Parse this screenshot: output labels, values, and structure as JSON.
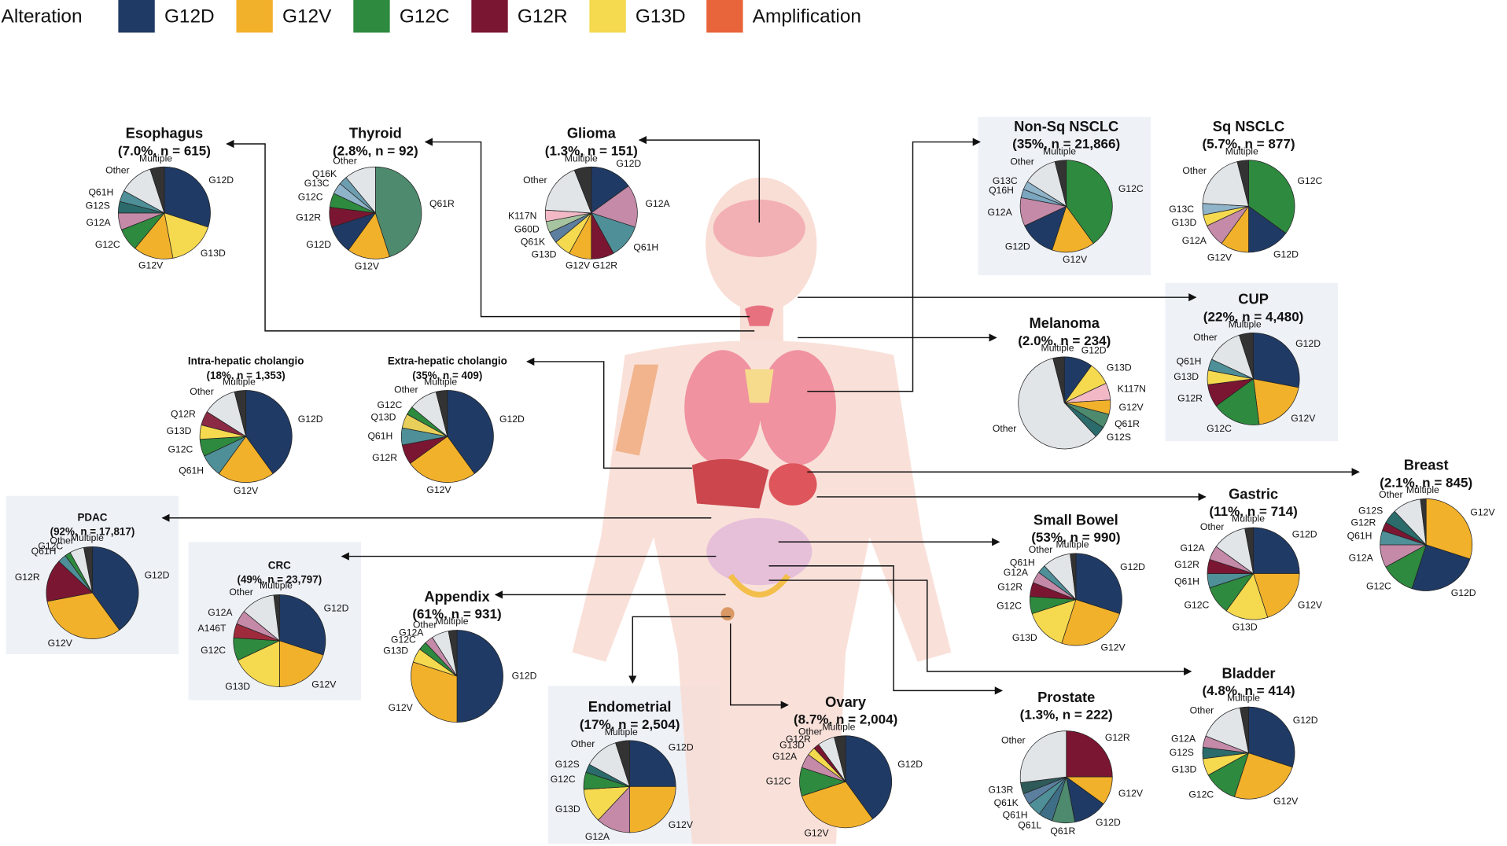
{
  "legend": {
    "title": "Alteration",
    "items": [
      "G12D",
      "G12V",
      "G12C",
      "G12R",
      "G13D",
      "Amplification"
    ]
  },
  "colors": {
    "G12D": "#1f3a64",
    "G12V": "#f2b12b",
    "G12C": "#2e8a3e",
    "G12R": "#7b1632",
    "G13D": "#f5d94f",
    "Amplification": "#e8643a",
    "Q61H": "#4e8f98",
    "G12A": "#c48aa8",
    "G12S": "#2b6b6b",
    "Other": "#e1e5e8",
    "Multiple": "#333333",
    "Q61R": "#4d8a6e",
    "Q61K": "#5c7fa0",
    "Q61L": "#3f6f86",
    "G13C": "#8fb3c9",
    "Q16K": "#6d9eb0",
    "Q16H": "#7aa6bf",
    "G60D": "#a7c4a0",
    "K117N": "#f2b8c6",
    "Q12R": "#8b2a44",
    "Q13D": "#e8cf5a",
    "A146T": "#9e2a3c",
    "G13R": "#2f5a5a"
  },
  "chart_data": [
    {
      "type": "pie",
      "title": "Esophagus",
      "subtitle": "(7.0%, n = 615)",
      "categories": [
        "G12D",
        "G13D",
        "G12V",
        "G12C",
        "G12A",
        "G12S",
        "Q61H",
        "Other",
        "Multiple"
      ],
      "values": [
        30,
        17,
        14,
        8,
        6,
        4,
        4,
        12,
        5
      ]
    },
    {
      "type": "pie",
      "title": "Thyroid",
      "subtitle": "(2.8%, n = 92)",
      "categories": [
        "Q61R",
        "G12V",
        "G12D",
        "G12R",
        "G12C",
        "G13C",
        "Q16K",
        "Other"
      ],
      "values": [
        45,
        15,
        10,
        7,
        5,
        4,
        3,
        11
      ]
    },
    {
      "type": "pie",
      "title": "Glioma",
      "subtitle": "(1.3%, n = 151)",
      "categories": [
        "G12D",
        "G12A",
        "Q61H",
        "G12R",
        "G12V",
        "G13D",
        "Q61K",
        "G60D",
        "K117N",
        "Other",
        "Multiple"
      ],
      "values": [
        15,
        15,
        12,
        8,
        8,
        6,
        4,
        4,
        4,
        18,
        6
      ]
    },
    {
      "type": "pie",
      "title": "Non-Sq NSCLC",
      "subtitle": "(35%, n = 21,866)",
      "categories": [
        "G12C",
        "G12V",
        "G12D",
        "G12A",
        "Q16H",
        "G13C",
        "Other",
        "Multiple"
      ],
      "values": [
        40,
        15,
        13,
        10,
        3,
        3,
        12,
        4
      ]
    },
    {
      "type": "pie",
      "title": "Sq NSCLC",
      "subtitle": "(5.7%, n = 877)",
      "categories": [
        "G12C",
        "G12D",
        "G12V",
        "G12A",
        "G13D",
        "G13C",
        "Other",
        "Multiple"
      ],
      "values": [
        35,
        15,
        10,
        8,
        4,
        4,
        20,
        4
      ]
    },
    {
      "type": "pie",
      "title": "CUP",
      "subtitle": "(22%, n = 4,480)",
      "categories": [
        "G12D",
        "G12V",
        "G12C",
        "G12R",
        "G13D",
        "Q61H",
        "Other",
        "Multiple"
      ],
      "values": [
        28,
        20,
        17,
        8,
        5,
        4,
        13,
        5
      ]
    },
    {
      "type": "pie",
      "title": "Melanoma",
      "subtitle": "(2.0%, n = 234)",
      "categories": [
        "G12D",
        "G13D",
        "K117N",
        "G12V",
        "Q61R",
        "G12S",
        "Other",
        "Multiple"
      ],
      "values": [
        10,
        8,
        6,
        5,
        5,
        4,
        58,
        4
      ]
    },
    {
      "type": "pie",
      "title": "Intra-hepatic cholangio",
      "subtitle": "(18%, n = 1,353)",
      "categories": [
        "G12D",
        "G12V",
        "Q61H",
        "G12C",
        "G13D",
        "Q12R",
        "Other",
        "Multiple"
      ],
      "values": [
        40,
        20,
        8,
        6,
        5,
        5,
        12,
        4
      ]
    },
    {
      "type": "pie",
      "title": "Extra-hepatic cholangio",
      "subtitle": "(35%, n = 409)",
      "categories": [
        "G12D",
        "G12V",
        "G12R",
        "Q61H",
        "Q13D",
        "G12C",
        "Other",
        "Multiple"
      ],
      "values": [
        40,
        25,
        7,
        6,
        5,
        3,
        10,
        4
      ]
    },
    {
      "type": "pie",
      "title": "PDAC",
      "subtitle": "(92%, n = 17,817)",
      "categories": [
        "G12D",
        "G12V",
        "G12R",
        "Q61H",
        "G12C",
        "Other",
        "Multiple"
      ],
      "values": [
        40,
        32,
        15,
        3,
        2,
        5,
        3
      ]
    },
    {
      "type": "pie",
      "title": "CRC",
      "subtitle": "(49%, n = 23,797)",
      "categories": [
        "G12D",
        "G12V",
        "G13D",
        "G12C",
        "A146T",
        "G12A",
        "Other",
        "Multiple"
      ],
      "values": [
        30,
        20,
        18,
        8,
        5,
        5,
        12,
        2
      ]
    },
    {
      "type": "pie",
      "title": "Appendix",
      "subtitle": "(61%, n = 931)",
      "categories": [
        "G12D",
        "G12V",
        "G13D",
        "G12C",
        "G12A",
        "Other",
        "Multiple"
      ],
      "values": [
        50,
        30,
        5,
        3,
        3,
        6,
        3
      ]
    },
    {
      "type": "pie",
      "title": "Endometrial",
      "subtitle": "(17%, n = 2,504)",
      "categories": [
        "G12D",
        "G12V",
        "G12A",
        "G13D",
        "G12C",
        "G12S",
        "Other",
        "Multiple"
      ],
      "values": [
        25,
        25,
        12,
        12,
        6,
        3,
        12,
        5
      ]
    },
    {
      "type": "pie",
      "title": "Ovary",
      "subtitle": "(8.7%, n = 2,004)",
      "categories": [
        "G12D",
        "G12V",
        "G12C",
        "G12A",
        "G13D",
        "G12R",
        "Other",
        "Multiple"
      ],
      "values": [
        40,
        30,
        10,
        5,
        3,
        2,
        6,
        4
      ]
    },
    {
      "type": "pie",
      "title": "Prostate",
      "subtitle": "(1.3%, n = 222)",
      "categories": [
        "G12R",
        "G12V",
        "G12D",
        "Q61R",
        "Q61L",
        "Q61H",
        "Q61K",
        "G13R",
        "Other"
      ],
      "values": [
        25,
        10,
        12,
        8,
        5,
        5,
        4,
        4,
        27
      ]
    },
    {
      "type": "pie",
      "title": "Bladder",
      "subtitle": "(4.8%, n = 414)",
      "categories": [
        "G12D",
        "G12V",
        "G12C",
        "G13D",
        "G12S",
        "G12A",
        "Other",
        "Multiple"
      ],
      "values": [
        30,
        25,
        12,
        6,
        4,
        4,
        16,
        3
      ]
    },
    {
      "type": "pie",
      "title": "Small Bowel",
      "subtitle": "(53%, n = 990)",
      "categories": [
        "G12D",
        "G12V",
        "G13D",
        "G12C",
        "G12R",
        "G12A",
        "Q61H",
        "Other",
        "Multiple"
      ],
      "values": [
        30,
        25,
        15,
        6,
        5,
        4,
        3,
        10,
        2
      ]
    },
    {
      "type": "pie",
      "title": "Gastric",
      "subtitle": "(11%, n = 714)",
      "categories": [
        "G12D",
        "G12V",
        "G13D",
        "G12C",
        "Q61H",
        "G12R",
        "G12A",
        "Other",
        "Multiple"
      ],
      "values": [
        25,
        20,
        15,
        10,
        5,
        5,
        5,
        12,
        3
      ]
    },
    {
      "type": "pie",
      "title": "Breast",
      "subtitle": "(2.1%, n = 845)",
      "categories": [
        "G12V",
        "G12D",
        "G12C",
        "G12A",
        "Q61H",
        "G12R",
        "G12S",
        "Other",
        "Multiple"
      ],
      "values": [
        30,
        25,
        12,
        8,
        5,
        3,
        5,
        10,
        2
      ]
    }
  ]
}
